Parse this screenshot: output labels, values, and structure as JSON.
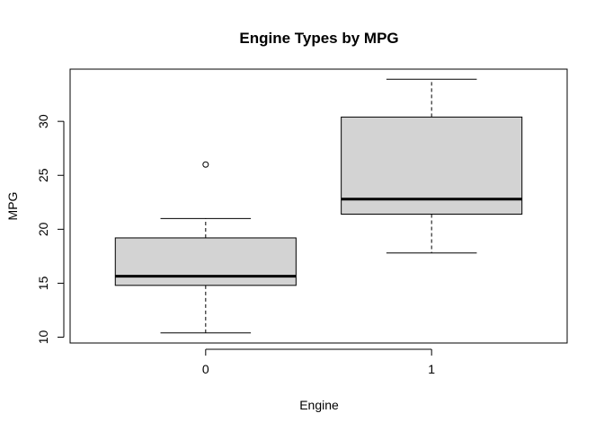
{
  "chart_data": {
    "type": "boxplot",
    "title": "Engine Types by MPG",
    "xlabel": "Engine",
    "ylabel": "MPG",
    "categories": [
      "0",
      "1"
    ],
    "yticks": [
      10,
      15,
      20,
      25,
      30
    ],
    "ylim": [
      9.46,
      34.84
    ],
    "grid": false,
    "box_fill": "#d3d3d3",
    "stroke": "#000000",
    "boxes": [
      {
        "category": "0",
        "whisker_low": 10.4,
        "q1": 14.8,
        "median": 15.65,
        "q3": 19.2,
        "whisker_high": 21.0,
        "outliers": [
          26.0
        ]
      },
      {
        "category": "1",
        "whisker_low": 17.8,
        "q1": 21.4,
        "median": 22.8,
        "q3": 30.4,
        "whisker_high": 33.9,
        "outliers": []
      }
    ]
  }
}
